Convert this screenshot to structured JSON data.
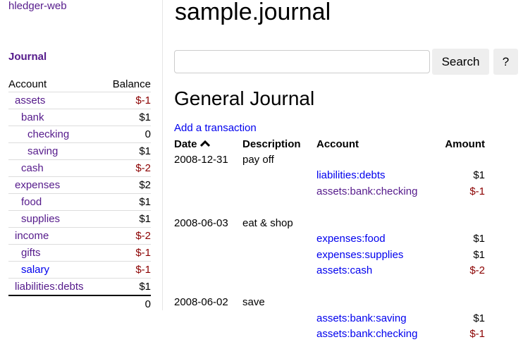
{
  "sidebar": {
    "brand": "hledger-web",
    "journal_link": "Journal",
    "headers": {
      "account": "Account",
      "balance": "Balance"
    },
    "accounts": [
      {
        "name": "assets",
        "indent": 0,
        "balance": "$-1",
        "negative": true,
        "visited": true
      },
      {
        "name": "bank",
        "indent": 1,
        "balance": "$1",
        "negative": false,
        "visited": true
      },
      {
        "name": "checking",
        "indent": 2,
        "balance": "0",
        "negative": false,
        "visited": true
      },
      {
        "name": "saving",
        "indent": 2,
        "balance": "$1",
        "negative": false,
        "visited": true
      },
      {
        "name": "cash",
        "indent": 1,
        "balance": "$-2",
        "negative": true,
        "visited": true
      },
      {
        "name": "expenses",
        "indent": 0,
        "balance": "$2",
        "negative": false,
        "visited": true
      },
      {
        "name": "food",
        "indent": 1,
        "balance": "$1",
        "negative": false,
        "visited": true
      },
      {
        "name": "supplies",
        "indent": 1,
        "balance": "$1",
        "negative": false,
        "visited": true
      },
      {
        "name": "income",
        "indent": 0,
        "balance": "$-2",
        "negative": true,
        "visited": true
      },
      {
        "name": "gifts",
        "indent": 1,
        "balance": "$-1",
        "negative": true,
        "visited": true
      },
      {
        "name": "salary",
        "indent": 1,
        "balance": "$-1",
        "negative": true,
        "visited": false
      },
      {
        "name": "liabilities:debts",
        "indent": 0,
        "balance": "$1",
        "negative": false,
        "visited": true
      }
    ],
    "total": "0"
  },
  "main": {
    "title": "sample.journal",
    "search": {
      "value": "",
      "placeholder": "",
      "button": "Search",
      "help": "?"
    },
    "heading": "General Journal",
    "add_link": "Add a transaction",
    "columns": {
      "date": "Date",
      "description": "Description",
      "account": "Account",
      "amount": "Amount"
    },
    "sort_icon": "chevron-up-icon",
    "transactions": [
      {
        "date": "2008-12-31",
        "description": "pay off",
        "postings": [
          {
            "account": "liabilities:debts",
            "amount": "$1",
            "negative": false,
            "visited": false
          },
          {
            "account": "assets:bank:checking",
            "amount": "$-1",
            "negative": true,
            "visited": true
          }
        ]
      },
      {
        "date": "2008-06-03",
        "description": "eat & shop",
        "postings": [
          {
            "account": "expenses:food",
            "amount": "$1",
            "negative": false,
            "visited": false
          },
          {
            "account": "expenses:supplies",
            "amount": "$1",
            "negative": false,
            "visited": false
          },
          {
            "account": "assets:cash",
            "amount": "$-2",
            "negative": true,
            "visited": false
          }
        ]
      },
      {
        "date": "2008-06-02",
        "description": "save",
        "postings": [
          {
            "account": "assets:bank:saving",
            "amount": "$1",
            "negative": false,
            "visited": false
          },
          {
            "account": "assets:bank:checking",
            "amount": "$-1",
            "negative": true,
            "visited": false
          }
        ]
      }
    ]
  },
  "colors": {
    "link": "#0000ee",
    "visited": "#551a8b",
    "negative": "#8b0000"
  }
}
